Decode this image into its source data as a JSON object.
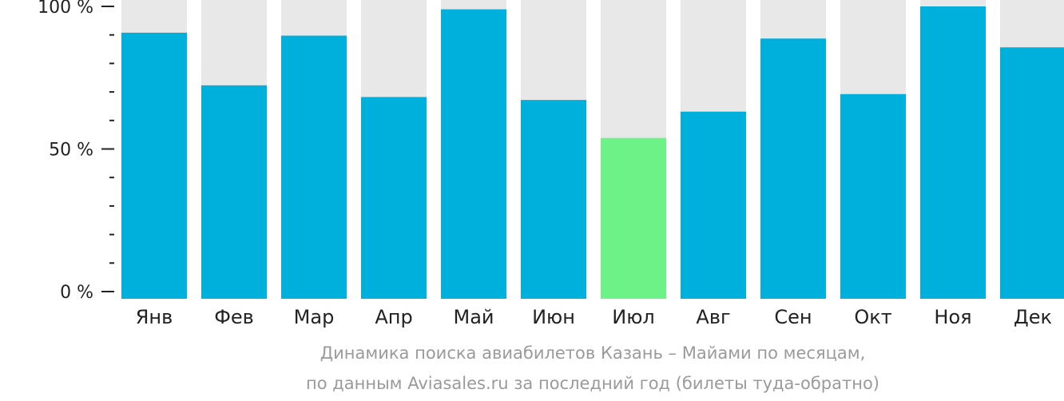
{
  "chart_data": {
    "type": "bar",
    "categories": [
      "Янв",
      "Фев",
      "Мар",
      "Апр",
      "Май",
      "Июн",
      "Июл",
      "Авг",
      "Сен",
      "Окт",
      "Ноя",
      "Дек"
    ],
    "values": [
      91,
      73,
      90,
      69,
      99,
      68,
      55,
      64,
      89,
      70,
      100,
      86
    ],
    "max_value": 100,
    "ylim": [
      0,
      100
    ],
    "y_ticks": [
      {
        "value": 0,
        "label": "0 %"
      },
      {
        "value": 50,
        "label": "50 %"
      },
      {
        "value": 100,
        "label": "100 %"
      }
    ],
    "highlight_category": "Июл",
    "colors": {
      "bar": "#00b0dc",
      "highlight": "#6cf286",
      "background_bar": "#e8e8e8",
      "axis": "#222222"
    },
    "title": "",
    "xlabel": "",
    "ylabel": "",
    "grid": false
  },
  "caption": {
    "line1": "Динамика поиска авиабилетов Казань – Майами по месяцам,",
    "line2": "по данным Aviasales.ru за последний год (билеты туда-обратно)"
  }
}
